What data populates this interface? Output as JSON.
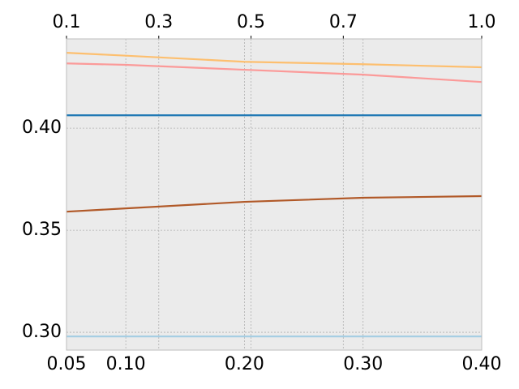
{
  "chart_data": {
    "type": "line",
    "x": [
      0.05,
      0.1,
      0.2,
      0.3,
      0.4
    ],
    "xlim": [
      0.05,
      0.4
    ],
    "xticks": [
      0.05,
      {
        "value": 0.1,
        "label": "0.10"
      },
      {
        "value": 0.2,
        "label": "0.20"
      },
      {
        "value": 0.3,
        "label": "0.30"
      },
      {
        "value": 0.4,
        "label": "0.40"
      }
    ],
    "x2lim": [
      0.1,
      1.0
    ],
    "x2ticks": [
      0.1,
      0.3,
      0.5,
      0.7,
      {
        "value": 1.0,
        "label": "1.0"
      }
    ],
    "ylim": [
      0.2913,
      0.4437
    ],
    "yticks": [
      {
        "value": 0.3,
        "label": "0.30"
      },
      0.35,
      {
        "value": 0.4,
        "label": "0.40"
      }
    ],
    "grid": true,
    "series": [
      {
        "color": "#fdbf6f",
        "values": [
          0.4369,
          0.4355,
          0.4325,
          0.4313,
          0.4298
        ]
      },
      {
        "color": "#fb9a99",
        "values": [
          0.4317,
          0.431,
          0.4286,
          0.4262,
          0.4226
        ]
      },
      {
        "color": "#1f78b4",
        "values": [
          0.4063,
          0.4063,
          0.4063,
          0.4063,
          0.4063
        ]
      },
      {
        "color": "#b15928",
        "values": [
          0.3591,
          0.3607,
          0.3639,
          0.3659,
          0.3667
        ]
      },
      {
        "color": "#a6cee3",
        "values": [
          0.298,
          0.298,
          0.298,
          0.298,
          0.298
        ]
      }
    ]
  }
}
